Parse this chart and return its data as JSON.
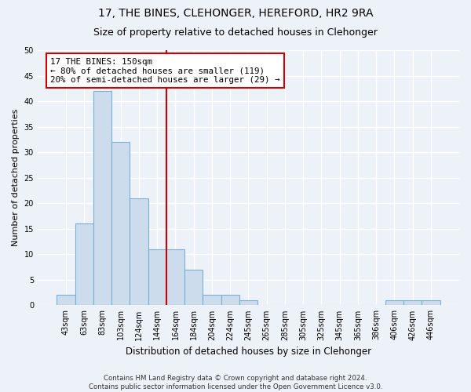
{
  "title1": "17, THE BINES, CLEHONGER, HEREFORD, HR2 9RA",
  "title2": "Size of property relative to detached houses in Clehonger",
  "xlabel": "Distribution of detached houses by size in Clehonger",
  "ylabel": "Number of detached properties",
  "bins": [
    "43sqm",
    "63sqm",
    "83sqm",
    "103sqm",
    "124sqm",
    "144sqm",
    "164sqm",
    "184sqm",
    "204sqm",
    "224sqm",
    "245sqm",
    "265sqm",
    "285sqm",
    "305sqm",
    "325sqm",
    "345sqm",
    "365sqm",
    "386sqm",
    "406sqm",
    "426sqm",
    "446sqm"
  ],
  "values": [
    2,
    16,
    42,
    32,
    21,
    11,
    11,
    7,
    2,
    2,
    1,
    0,
    0,
    0,
    0,
    0,
    0,
    0,
    1,
    1,
    1
  ],
  "bar_color": "#ccdcec",
  "bar_edge_color": "#7aafd4",
  "vline_color": "#cc0000",
  "vline_x": 5.5,
  "annotation_text": "17 THE BINES: 150sqm\n← 80% of detached houses are smaller (119)\n20% of semi-detached houses are larger (29) →",
  "annotation_box_color": "white",
  "annotation_box_edge_color": "#cc0000",
  "ylim": [
    0,
    50
  ],
  "yticks": [
    0,
    5,
    10,
    15,
    20,
    25,
    30,
    35,
    40,
    45,
    50
  ],
  "footer": "Contains HM Land Registry data © Crown copyright and database right 2024.\nContains public sector information licensed under the Open Government Licence v3.0.",
  "bg_color": "#edf2f8",
  "grid_color": "#ffffff",
  "title1_fontsize": 10,
  "title2_fontsize": 9,
  "annotation_fontsize": 7.8,
  "tick_fontsize": 7,
  "ylabel_fontsize": 8,
  "xlabel_fontsize": 8.5
}
